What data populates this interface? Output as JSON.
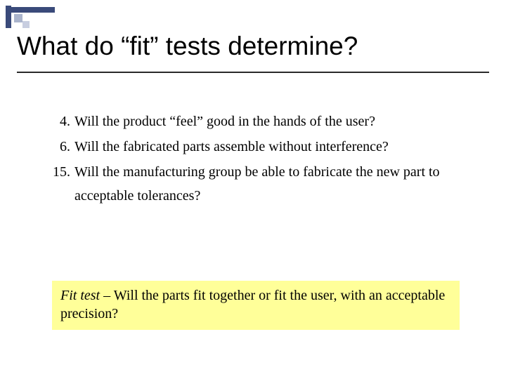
{
  "decoration": {
    "bar_color": "#3a4a7a",
    "square1_color": "#aab4cc",
    "square2_color": "#c8cee0"
  },
  "title": "What do “fit” tests determine?",
  "rule_color": "#2a2a2a",
  "items": [
    {
      "num": "4.",
      "text": "Will the product “feel” good in the hands of the user?"
    },
    {
      "num": "6.",
      "text": "Will the fabricated parts assemble without interference?"
    },
    {
      "num": "15.",
      "text": "Will the manufacturing group be able to fabricate the new part to acceptable tolerances?"
    }
  ],
  "callout": {
    "background": "#ffff99",
    "term": "Fit test",
    "separator": " – ",
    "text": "Will the parts fit together or fit the user, with an acceptable precision?"
  },
  "fonts": {
    "title_family": "Arial",
    "title_size_pt": 28,
    "body_family": "Times New Roman",
    "body_size_pt": 15
  },
  "background_color": "#ffffff"
}
